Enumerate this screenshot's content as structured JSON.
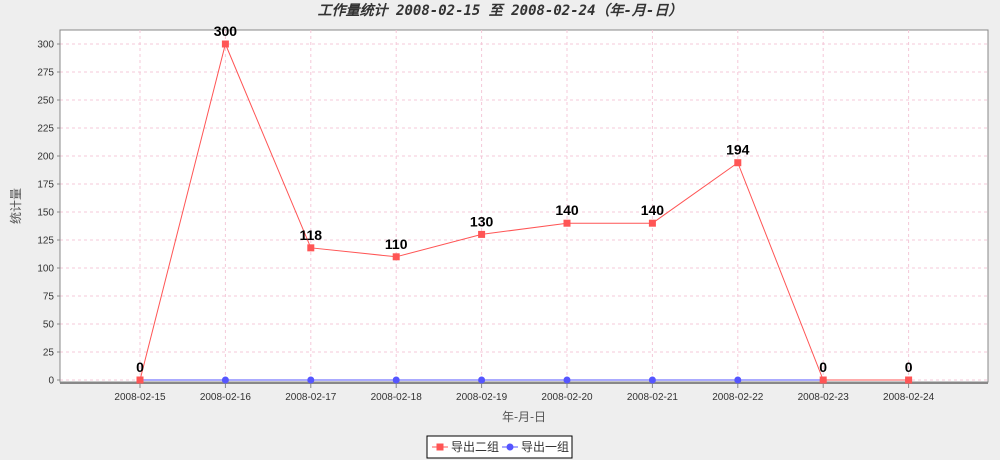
{
  "chart_data": {
    "type": "line",
    "title": "工作量统计 2008-02-15 至 2008-02-24（年-月-日）",
    "xlabel": "年-月-日",
    "ylabel": "统计量",
    "categories": [
      "2008-02-15",
      "2008-02-16",
      "2008-02-17",
      "2008-02-18",
      "2008-02-19",
      "2008-02-20",
      "2008-02-21",
      "2008-02-22",
      "2008-02-23",
      "2008-02-24"
    ],
    "ylim": [
      0,
      300
    ],
    "yticks": [
      0,
      25,
      50,
      75,
      100,
      125,
      150,
      175,
      200,
      225,
      250,
      275,
      300
    ],
    "grid": true,
    "legend_position": "bottom",
    "series": [
      {
        "name": "导出二组",
        "color": "#ff5555",
        "marker": "square",
        "values": [
          0,
          300,
          118,
          110,
          130,
          140,
          140,
          194,
          0,
          0
        ]
      },
      {
        "name": "导出一组",
        "color": "#5555ff",
        "marker": "circle",
        "values": [
          0,
          0,
          0,
          0,
          0,
          0,
          0,
          0,
          0,
          0
        ]
      }
    ]
  }
}
